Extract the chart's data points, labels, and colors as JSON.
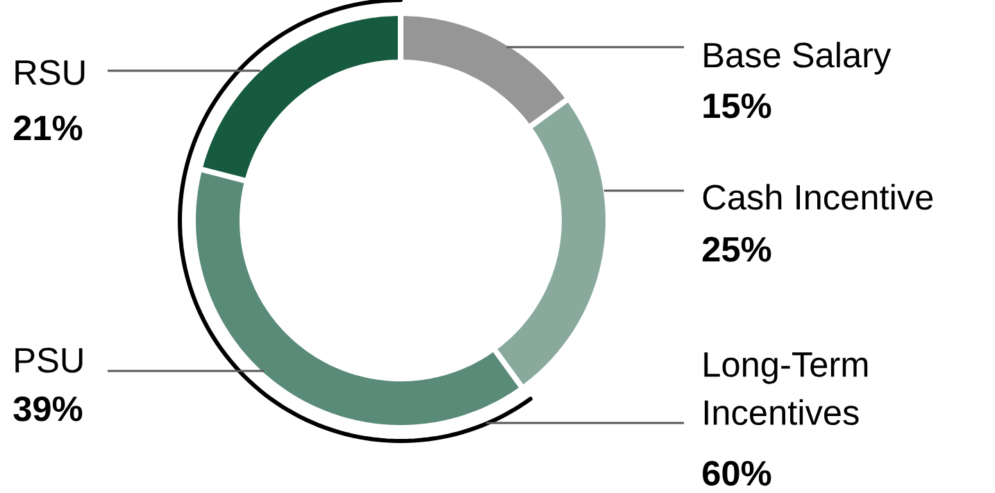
{
  "chart_data": {
    "type": "donut",
    "categories": [
      "Base Salary",
      "Cash Incentive",
      "PSU",
      "RSU"
    ],
    "values": [
      15,
      25,
      39,
      21
    ],
    "value_labels": [
      "15%",
      "25%",
      "39%",
      "21%"
    ],
    "colors": [
      "#969696",
      "#88a99c",
      "#5a8a78",
      "#165a40"
    ],
    "annotations": [
      "Long-Term Incentives",
      "60%"
    ]
  }
}
